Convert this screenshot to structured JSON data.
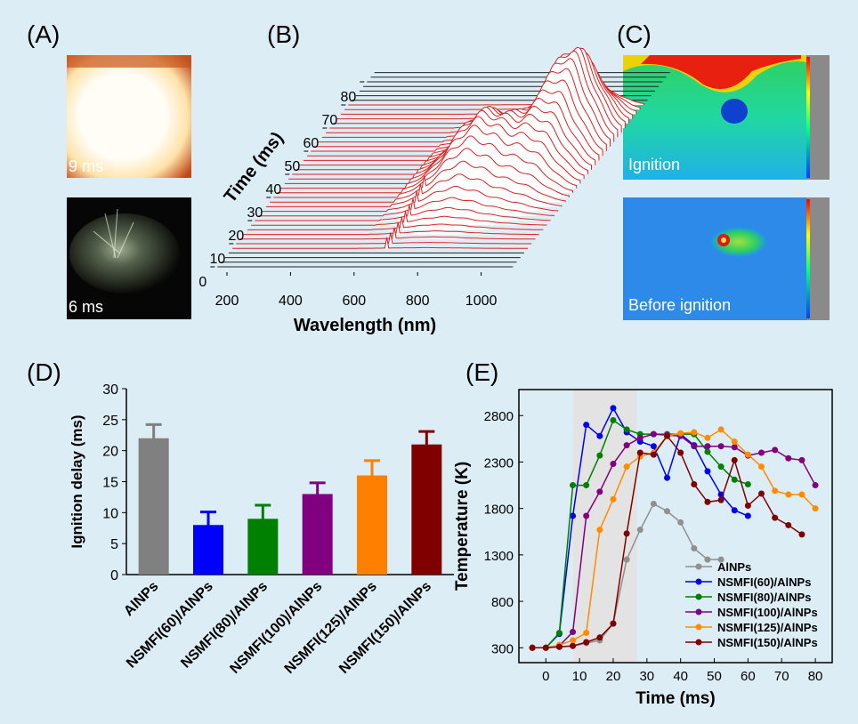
{
  "panel_labels": [
    "(A)",
    "(B)",
    "(C)",
    "(D)",
    "(E)"
  ],
  "images": {
    "a_top": "9 ms",
    "a_bottom": "6 ms",
    "c_top": "Ignition",
    "c_bottom": "Before ignition"
  },
  "chart_data": [
    {
      "type": "waterfall",
      "xlabel": "Wavelength (nm)",
      "ylabel": "Time (ms)",
      "xlim": [
        170,
        1100
      ],
      "xticks": [
        200,
        400,
        600,
        800,
        1000
      ],
      "ylim": [
        0,
        84
      ],
      "yticks": [
        0,
        10,
        20,
        30,
        40,
        50,
        60,
        70,
        80
      ],
      "colors": [
        "#222222",
        "#e02020"
      ]
    },
    {
      "type": "bar",
      "ylabel": "Ignition delay (ms)",
      "categories": [
        "AlNPs",
        "NSMFI(60)/AlNPs",
        "NSMFI(80)/AlNPs",
        "NSMFI(100)/AlNPs",
        "NSMFI(125)/AlNPs",
        "NSMFI(150)/AlNPs"
      ],
      "values": [
        22,
        8,
        9,
        13,
        16,
        21
      ],
      "errors": [
        2.2,
        2.1,
        2.2,
        1.8,
        2.4,
        2.1
      ],
      "colors": [
        "#808080",
        "#0000ff",
        "#008000",
        "#800080",
        "#ff8000",
        "#800000"
      ],
      "ylim": [
        0,
        30
      ],
      "yticks": [
        0,
        5,
        10,
        15,
        20,
        25,
        30
      ]
    },
    {
      "type": "line",
      "xlabel": "Time (ms)",
      "ylabel": "Temperature (K)",
      "xlim": [
        -8,
        85
      ],
      "xticks": [
        0,
        10,
        20,
        30,
        40,
        50,
        60,
        70,
        80
      ],
      "ylim": [
        140,
        3080
      ],
      "yticks": [
        300,
        800,
        1300,
        1800,
        2300,
        2800
      ],
      "shade": [
        8,
        27
      ],
      "legend": "lower right",
      "series": [
        {
          "name": "AlNPs",
          "color": "#909090",
          "x": [
            -4,
            0,
            4,
            8,
            12,
            16,
            20,
            24,
            28,
            32,
            36,
            40,
            44,
            48,
            52
          ],
          "values": [
            300,
            300,
            310,
            320,
            350,
            380,
            560,
            1250,
            1570,
            1850,
            1770,
            1650,
            1370,
            1250,
            1250
          ]
        },
        {
          "name": "NSMFI(60)/AlNPs",
          "color": "#0000ee",
          "x": [
            -4,
            0,
            4,
            8,
            12,
            16,
            20,
            24,
            28,
            32,
            36,
            40,
            44,
            48,
            52,
            56,
            60
          ],
          "values": [
            300,
            300,
            450,
            1720,
            2700,
            2580,
            2880,
            2620,
            2520,
            2470,
            2130,
            2600,
            2480,
            2200,
            1950,
            1780,
            1720
          ]
        },
        {
          "name": "NSMFI(80)/AlNPs",
          "color": "#008000",
          "x": [
            -4,
            0,
            4,
            8,
            12,
            16,
            20,
            24,
            28,
            32,
            36,
            40,
            44,
            48,
            52,
            56,
            60
          ],
          "values": [
            300,
            300,
            460,
            2050,
            2050,
            2370,
            2750,
            2650,
            2600,
            2600,
            2600,
            2600,
            2600,
            2410,
            2250,
            2110,
            2060
          ]
        },
        {
          "name": "NSMFI(100)/AlNPs",
          "color": "#800080",
          "x": [
            -4,
            0,
            4,
            8,
            12,
            16,
            20,
            24,
            28,
            32,
            36,
            40,
            44,
            48,
            52,
            56,
            60,
            64,
            68,
            72,
            76,
            80
          ],
          "values": [
            300,
            300,
            320,
            470,
            1720,
            1980,
            2280,
            2480,
            2560,
            2600,
            2590,
            2580,
            2470,
            2470,
            2470,
            2460,
            2370,
            2400,
            2430,
            2340,
            2320,
            2050
          ]
        },
        {
          "name": "NSMFI(125)/AlNPs",
          "color": "#ff8c00",
          "x": [
            -4,
            0,
            4,
            8,
            12,
            16,
            20,
            24,
            28,
            32,
            36,
            40,
            44,
            48,
            52,
            56,
            60,
            64,
            68,
            72,
            76,
            80
          ],
          "values": [
            300,
            300,
            330,
            380,
            460,
            1570,
            1900,
            2250,
            2360,
            2400,
            2580,
            2610,
            2620,
            2560,
            2650,
            2520,
            2380,
            2250,
            1990,
            1950,
            1950,
            1800
          ]
        },
        {
          "name": "NSMFI(150)/AlNPs",
          "color": "#800000",
          "x": [
            -4,
            0,
            4,
            8,
            12,
            16,
            20,
            24,
            28,
            32,
            36,
            40,
            44,
            48,
            52,
            56,
            60,
            64,
            68,
            72,
            76
          ],
          "values": [
            300,
            300,
            310,
            320,
            360,
            410,
            560,
            1530,
            2400,
            2380,
            2580,
            2400,
            2060,
            1870,
            1890,
            2320,
            1830,
            1960,
            1700,
            1620,
            1520
          ]
        }
      ]
    }
  ]
}
